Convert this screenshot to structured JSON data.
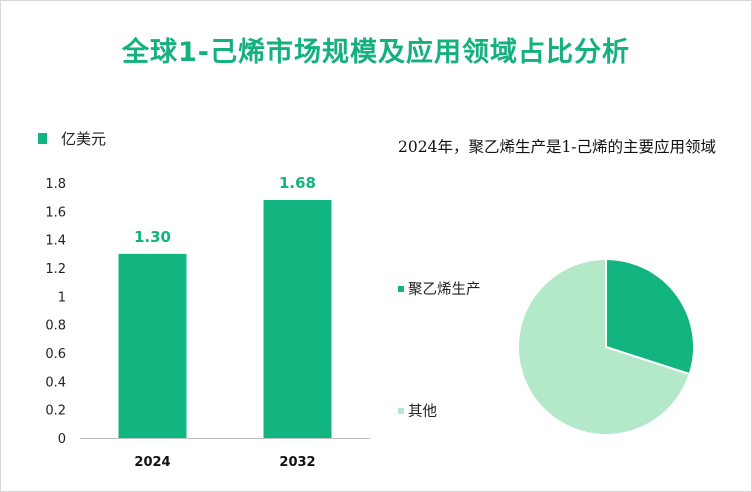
{
  "title": "全球1-己烯市场规模及应用领域占比分析",
  "colors": {
    "accent": "#12b47f",
    "title": "#14b07e",
    "pie_main": "#12b47f",
    "pie_other": "#b3e8c9"
  },
  "chart_data": [
    {
      "type": "bar",
      "categories": [
        "2024",
        "2032"
      ],
      "series": [
        {
          "name": "亿美元",
          "values": [
            1.3,
            1.68
          ]
        }
      ],
      "data_labels": [
        "1.30",
        "1.68"
      ],
      "ylim": [
        0,
        1.8
      ],
      "yticks": [
        0,
        0.2,
        0.4,
        0.6,
        0.8,
        1,
        1.2,
        1.4,
        1.6,
        1.8
      ],
      "ytick_labels": [
        "0",
        "0.2",
        "0.4",
        "0.6",
        "0.8",
        "1",
        "1.2",
        "1.4",
        "1.6",
        "1.8"
      ],
      "grid": false,
      "legend_position": "top-left"
    },
    {
      "type": "pie",
      "title": "2024年，聚乙烯生产是1-己烯的主要应用领域",
      "labels": [
        "聚乙烯生产",
        "其他"
      ],
      "values": [
        30,
        70
      ],
      "legend_position": "left"
    }
  ]
}
